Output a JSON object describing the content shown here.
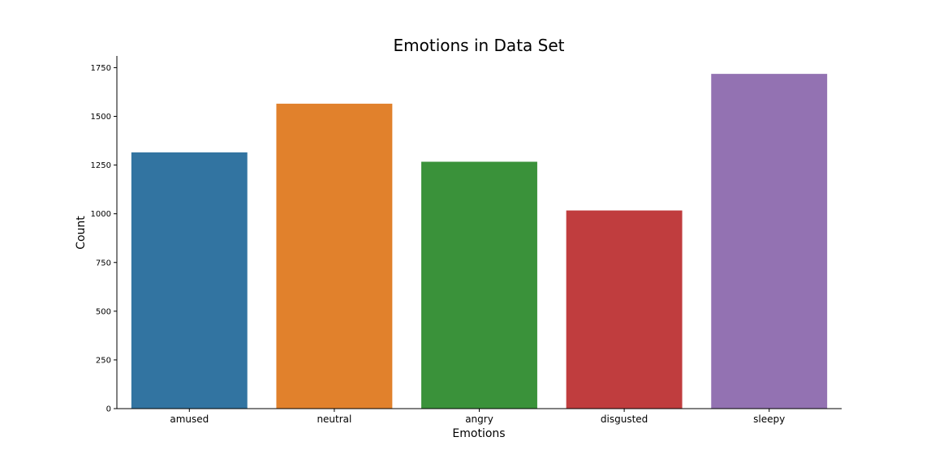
{
  "chart_data": {
    "type": "bar",
    "title": "Emotions in Data Set",
    "xlabel": "Emotions",
    "ylabel": "Count",
    "categories": [
      "amused",
      "neutral",
      "angry",
      "disgusted",
      "sleepy"
    ],
    "values": [
      1315,
      1565,
      1267,
      1017,
      1718
    ],
    "colors": [
      "#3274a1",
      "#e1812c",
      "#3a923a",
      "#c03d3e",
      "#9372b2"
    ],
    "ylim": [
      0,
      1810
    ],
    "yticks": [
      0,
      250,
      500,
      750,
      1000,
      1250,
      1500,
      1750
    ],
    "grid": false,
    "legend": "none"
  }
}
